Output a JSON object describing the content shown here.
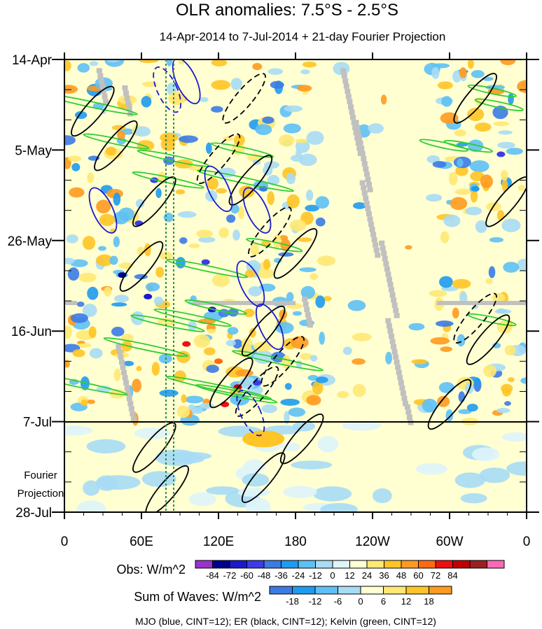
{
  "chart_data": {
    "type": "heatmap",
    "title": "OLR anomalies: 7.5°S - 2.5°S",
    "subtitle": "14-Apr-2014 to 7-Jul-2014 + 21-day Fourier Projection",
    "x_ticks": [
      "0",
      "60E",
      "120E",
      "180",
      "120W",
      "60W",
      "0"
    ],
    "x_tick_lons": [
      0,
      60,
      120,
      180,
      240,
      300,
      360
    ],
    "y_ticks": [
      "14-Apr",
      "5-May",
      "26-May",
      "16-Jun",
      "7-Jul",
      "28-Jul"
    ],
    "y_tick_days": [
      0,
      21,
      42,
      63,
      84,
      105
    ],
    "projection_label": [
      "Fourier",
      "Projection"
    ],
    "obs_label": "Obs: W/m^2",
    "obs_levels": [
      "-84",
      "-72",
      "-60",
      "-48",
      "-36",
      "-24",
      "-12",
      "0",
      "12",
      "24",
      "36",
      "48",
      "60",
      "72",
      "84"
    ],
    "obs_colors": [
      "#9932cc",
      "#00008b",
      "#1a1acd",
      "#3c3ce6",
      "#3a7be6",
      "#1e9bf0",
      "#5ec0f5",
      "#a7dcf5",
      "#dff4fa",
      "#ffffd2",
      "#ffe873",
      "#ffc425",
      "#ff9a1e",
      "#ff6a0f",
      "#ee1010",
      "#c00000",
      "#9c2020",
      "#ff69b4"
    ],
    "waves_label": "Sum of Waves: W/m^2",
    "waves_levels": [
      "-18",
      "-12",
      "-6",
      "0",
      "6",
      "12",
      "18"
    ],
    "waves_colors": [
      "#3a7be6",
      "#1e9bf0",
      "#5ec0f5",
      "#a7dcf5",
      "#ffffd2",
      "#ffe873",
      "#ffc425",
      "#ff9a1e"
    ],
    "footnote": "MJO (blue, CINT=12); ER (black, CINT=12); Kelvin (green, CINT=12)"
  }
}
